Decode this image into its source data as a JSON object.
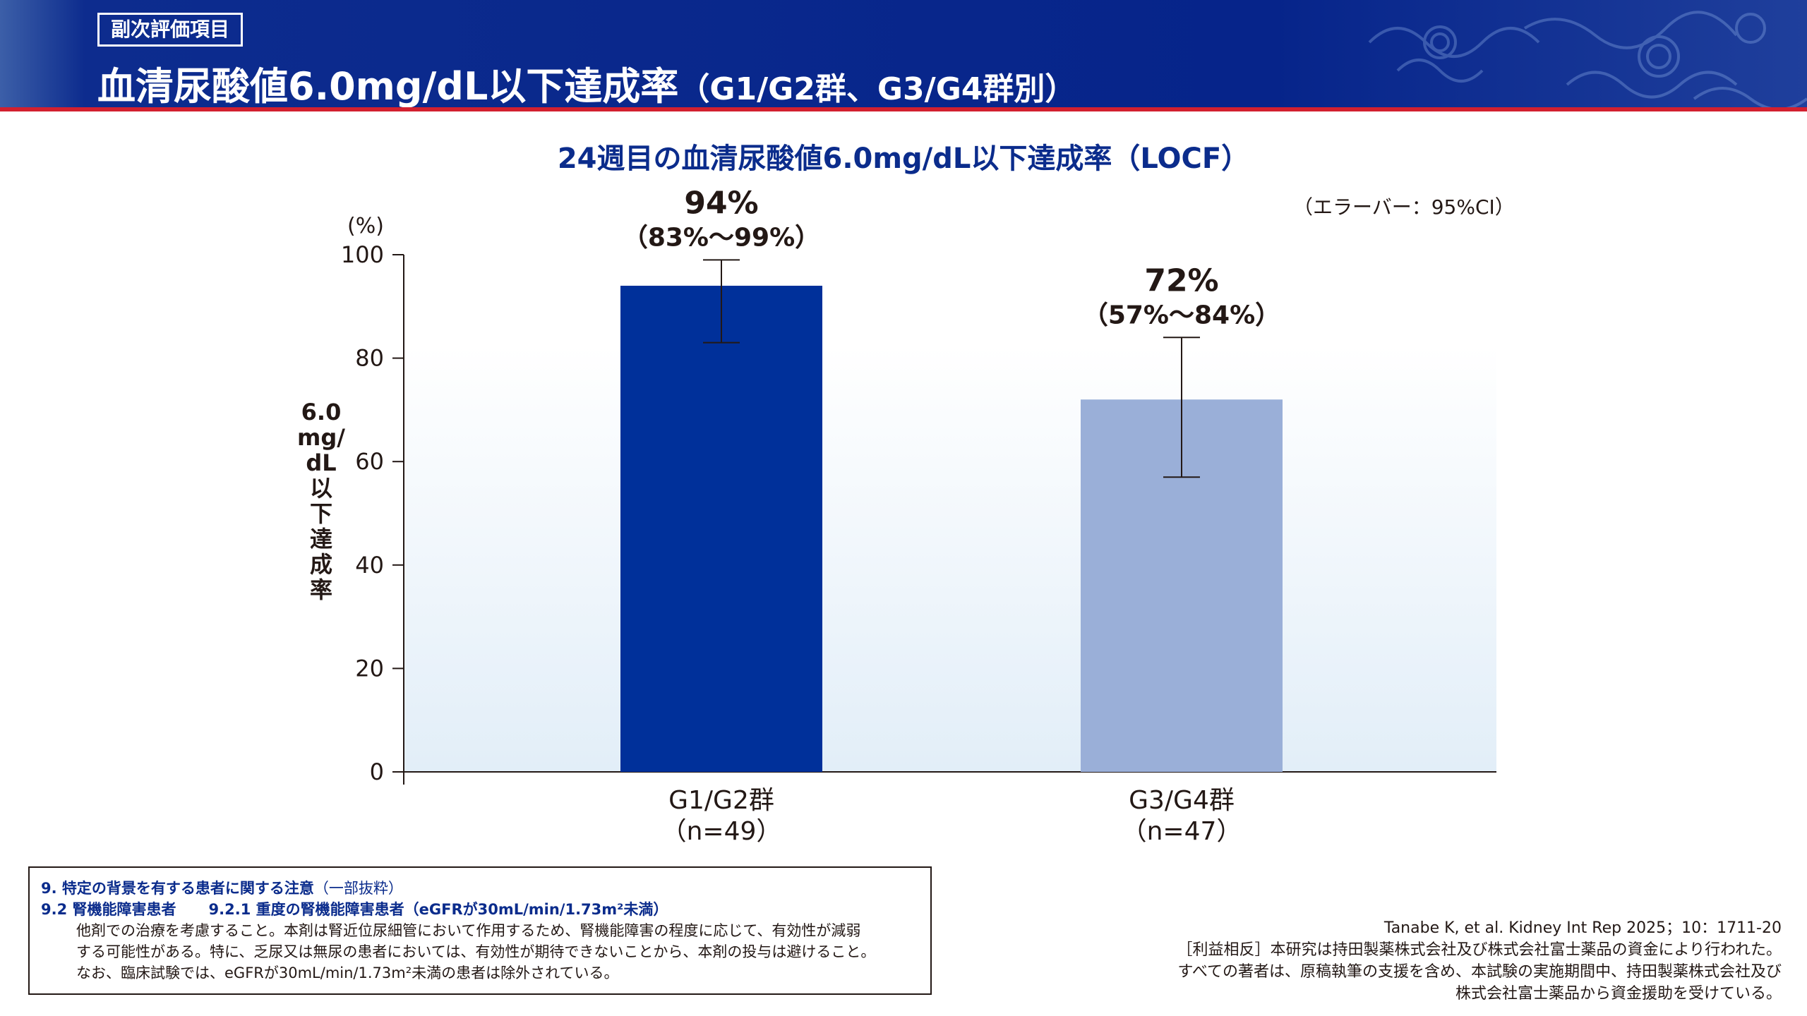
{
  "header": {
    "tag": "副次評価項目",
    "title_main": "血清尿酸値6.0mg/dL以下達成率",
    "title_sub": "（G1/G2群、G3/G4群別）"
  },
  "chart_data": {
    "type": "bar",
    "title": "24週目の血清尿酸値6.0mg/dL以下達成率（LOCF）",
    "ylabel": "6.0 mg/ dL 以下達成率",
    "yunit": "(%)",
    "ylim": [
      0,
      100
    ],
    "yticks": [
      0,
      20,
      40,
      60,
      80,
      100
    ],
    "error_note": "（エラーバー：95%CI）",
    "categories": [
      {
        "name": "G1/G2群",
        "n": "（n=49）"
      },
      {
        "name": "G3/G4群",
        "n": "（n=47）"
      }
    ],
    "values": [
      94,
      72
    ],
    "ci_low": [
      83,
      57
    ],
    "ci_high": [
      99,
      84
    ],
    "value_labels": [
      "94%",
      "72%"
    ],
    "ci_labels": [
      "（83%〜99%）",
      "（57%〜84%）"
    ],
    "colors": [
      "#00309a",
      "#9aafd8"
    ]
  },
  "ylabel_parts": [
    "6.0",
    "mg/",
    "dL",
    "以",
    "下",
    "達",
    "成",
    "率"
  ],
  "footnote": {
    "line1_bold": "9. 特定の背景を有する患者に関する注意",
    "line1_light": "（一部抜粋）",
    "line2_a": "9.2 腎機能障害患者",
    "line2_b": "9.2.1 重度の腎機能障害患者（eGFRが30mL/min/1.73m²未満）",
    "body": [
      "他剤での治療を考慮すること。本剤は腎近位尿細管において作用するため、腎機能障害の程度に応じて、有効性が減弱",
      "する可能性がある。特に、乏尿又は無尿の患者においては、有効性が期待できないことから、本剤の投与は避けること。",
      "なお、臨床試験では、eGFRが30mL/min/1.73m²未満の患者は除外されている。"
    ]
  },
  "reference": {
    "citation": "Tanabe K, et al. Kidney Int Rep 2025；10：1711-20",
    "coi": [
      "［利益相反］本研究は持田製薬株式会社及び株式会社富士薬品の資金により行われた。",
      "すべての著者は、原稿執筆の支援を含め、本試験の実施期間中、持田製薬株式会社及び",
      "株式会社富士薬品から資金援助を受けている。"
    ]
  }
}
